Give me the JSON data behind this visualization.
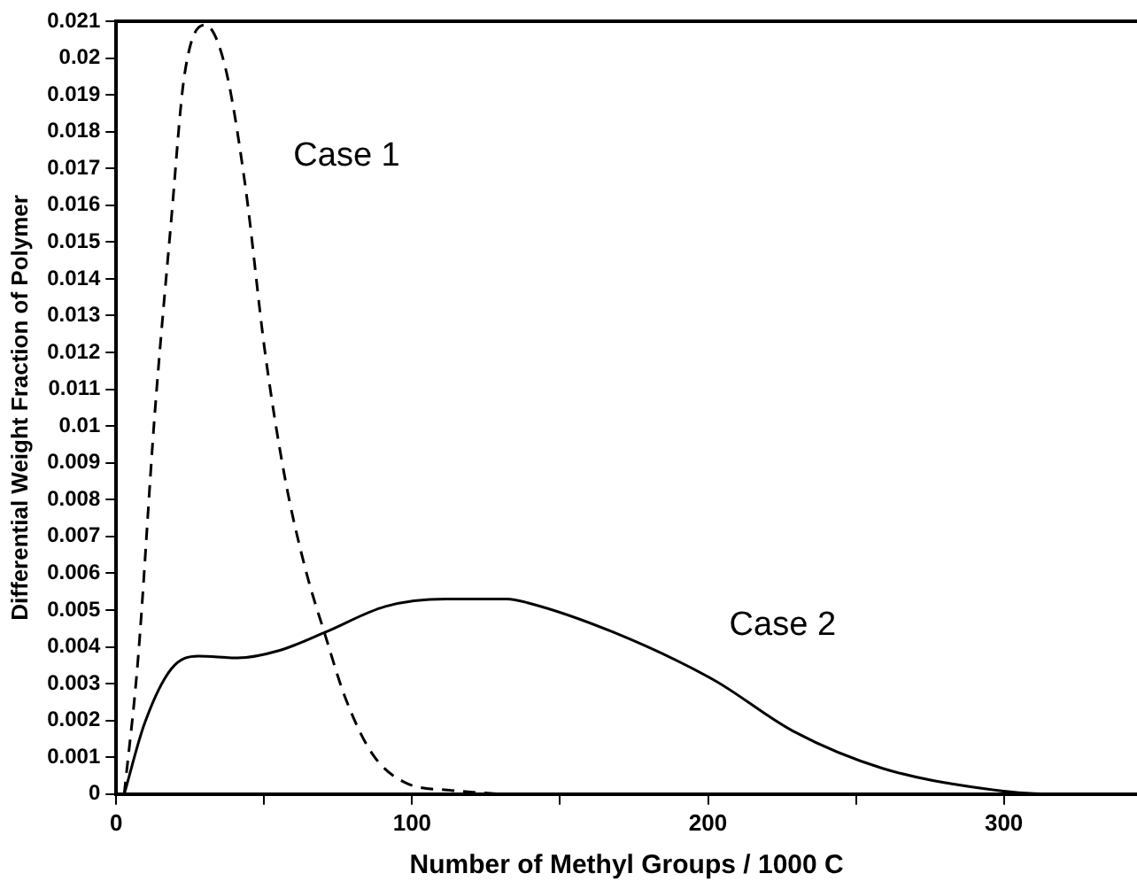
{
  "chart_data": {
    "type": "line",
    "xlabel": "Number of Methyl Groups / 1000 C",
    "ylabel": "Differential Weight Fraction of Polymer",
    "xlim": [
      0,
      345
    ],
    "xticks": [
      0,
      {
        "value": 50,
        "label": null
      },
      100,
      {
        "value": 150,
        "label": null
      },
      200,
      {
        "value": 250,
        "label": null
      },
      300
    ],
    "ylim": [
      0,
      0.021
    ],
    "yticks": [
      0,
      0.001,
      0.002,
      0.003,
      0.004,
      0.005,
      0.006,
      0.007,
      0.008,
      0.009,
      0.01,
      0.011,
      0.012,
      0.013,
      0.014,
      0.015,
      0.016,
      0.017,
      0.018,
      0.019,
      0.02,
      0.021
    ],
    "grid": false,
    "legend": false,
    "marker": "none",
    "series": [
      {
        "name": "Case 1",
        "color": "#000000",
        "line_style": "dashed",
        "x": [
          2.7,
          7.3,
          13,
          18.6,
          23,
          30,
          36.7,
          43.5,
          50.3,
          57,
          64,
          70.7,
          77.5,
          86.5,
          98,
          113.5,
          130
        ],
        "values": [
          0,
          0.0036,
          0.0103,
          0.0156,
          0.0195,
          0.0209,
          0.0198,
          0.0166,
          0.012,
          0.0086,
          0.0061,
          0.0043,
          0.0026,
          0.0011,
          0.0003,
          0.0001,
          0
        ]
      },
      {
        "name": "Case 2",
        "color": "#000000",
        "line_style": "solid",
        "x": [
          2.7,
          9.5,
          18.6,
          27.7,
          41,
          55,
          70.7,
          91,
          111.5,
          132,
          139,
          168,
          202,
          229,
          259,
          293,
          315,
          338
        ],
        "values": [
          0,
          0.0019,
          0.0034,
          0.00375,
          0.0037,
          0.0039,
          0.0044,
          0.0051,
          0.0053,
          0.0053,
          0.0052,
          0.0044,
          0.0031,
          0.0017,
          0.0007,
          0.00015,
          0,
          0
        ]
      }
    ]
  }
}
